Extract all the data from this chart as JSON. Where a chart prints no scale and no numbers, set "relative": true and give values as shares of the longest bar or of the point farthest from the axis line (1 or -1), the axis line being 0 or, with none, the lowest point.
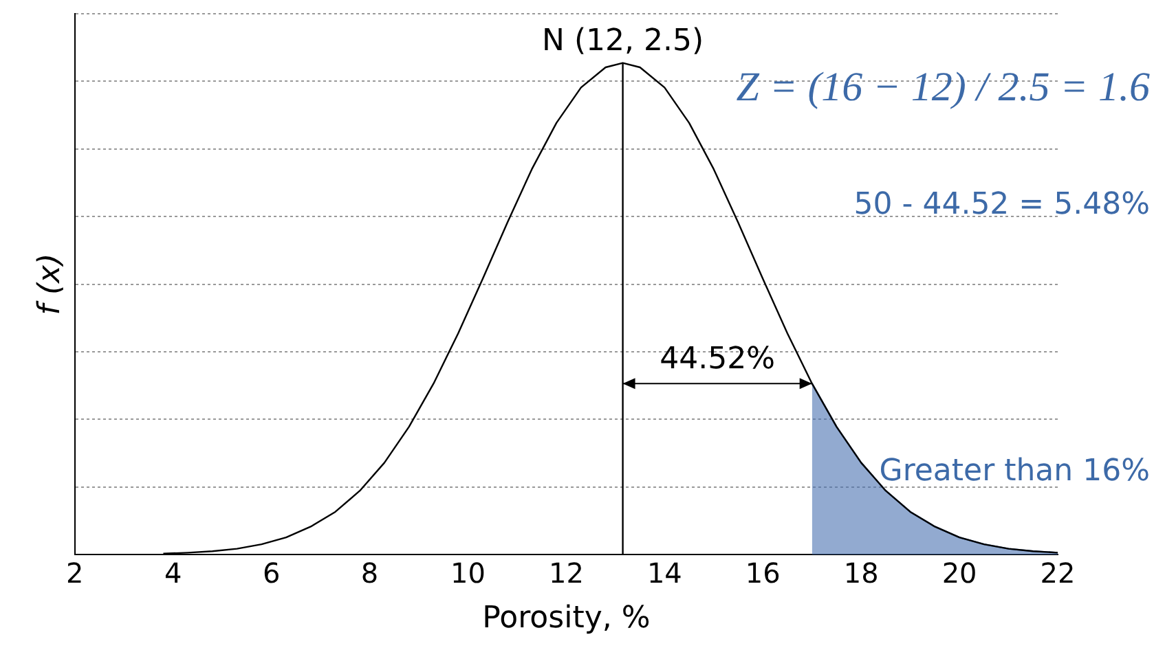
{
  "chart_data": {
    "type": "line",
    "relative": true,
    "xlabel": "Porosity, %",
    "ylabel": "f (x)",
    "xlim": [
      2,
      22
    ],
    "xticks": [
      2,
      4,
      6,
      8,
      10,
      12,
      14,
      16,
      18,
      20,
      22
    ],
    "grid": "y",
    "legend": false,
    "marker": "none",
    "series": [
      {
        "color": "#000000",
        "x": [
          3.8,
          4.3,
          4.8,
          5.3,
          5.8,
          6.3,
          6.8,
          7.3,
          7.8,
          8.3,
          8.8,
          9.3,
          9.8,
          10.3,
          10.8,
          11.3,
          11.8,
          12.3,
          12.8,
          13.15,
          13.5,
          14,
          14.5,
          15,
          15.5,
          16,
          16.5,
          17,
          17.5,
          18,
          18.5,
          19,
          19.5,
          20,
          20.5,
          21,
          21.5,
          22
        ],
        "values": [
          0.002,
          0.004,
          0.007,
          0.012,
          0.021,
          0.035,
          0.057,
          0.087,
          0.13,
          0.187,
          0.26,
          0.348,
          0.45,
          0.561,
          0.675,
          0.784,
          0.878,
          0.95,
          0.991,
          1,
          0.991,
          0.95,
          0.878,
          0.784,
          0.675,
          0.561,
          0.45,
          0.348,
          0.26,
          0.187,
          0.13,
          0.087,
          0.057,
          0.035,
          0.021,
          0.012,
          0.007,
          0.004
        ]
      },
      {
        "color": "#000000",
        "x": [
          13.15,
          13.15
        ],
        "values": [
          0,
          1
        ]
      },
      {
        "type": "area",
        "color": "#4a72b0",
        "x": [
          17,
          17.5,
          18,
          18.5,
          19,
          19.5,
          20,
          20.5,
          21,
          21.5,
          22
        ],
        "values": [
          0.348,
          0.26,
          0.187,
          0.13,
          0.087,
          0.057,
          0.035,
          0.021,
          0.012,
          0.007,
          0.004
        ]
      }
    ],
    "annotations": [
      {
        "text": "N (12, 2.5)",
        "x": 13.15,
        "y": 1
      },
      "44.52%",
      "Z = (16 − 12) / 2.5 = 1.6",
      "50 - 44.52 = 5.48%",
      "Greater than 16%"
    ]
  }
}
